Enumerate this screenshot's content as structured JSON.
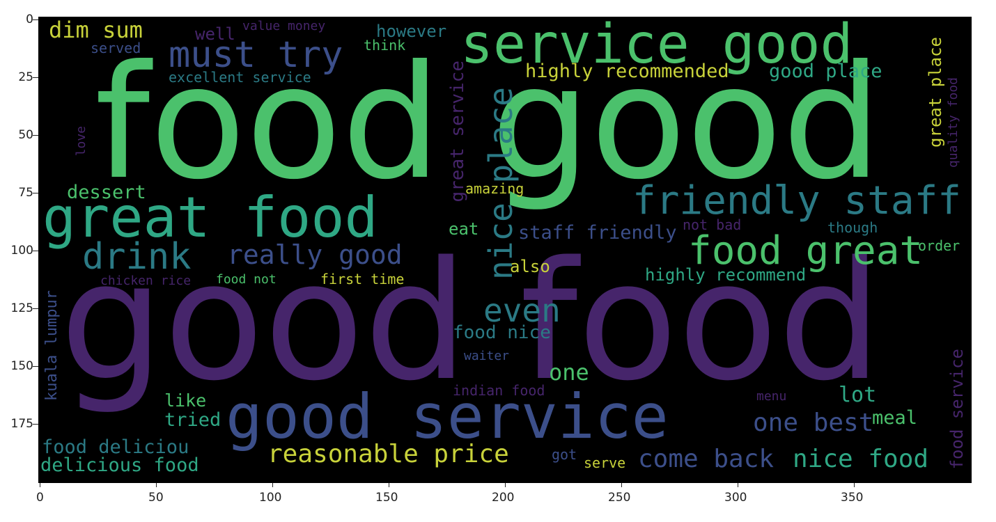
{
  "figure": {
    "y_ticks": [
      "0",
      "25",
      "50",
      "75",
      "100",
      "125",
      "150",
      "175"
    ],
    "x_ticks": [
      "0",
      "50",
      "100",
      "150",
      "200",
      "250",
      "300",
      "350"
    ],
    "colors": {
      "purple": "#46256b",
      "teal": "#2b7a85",
      "green": "#4bc16c",
      "blue": "#3c4f8a",
      "yellow": "#c8d23a",
      "mint": "#2fa885"
    }
  },
  "words": {
    "food_good": "food good",
    "good_food": "good food",
    "service_good": "service good",
    "great_food": "great food",
    "good_service": "good service",
    "food_great": "food great",
    "friendly_staff": "friendly staff",
    "must_try": "must try",
    "nice_place": "nice place",
    "drink": "drink",
    "even": "even",
    "really_good": "really good",
    "reasonable_price": "reasonable price",
    "come_back": "come back",
    "nice_food": "nice food",
    "one_best": "one best",
    "dim_sum": "dim sum",
    "highly_recommended": "highly recommended",
    "good_place": "good place",
    "dessert": "dessert",
    "staff_friendly": "staff friendly",
    "highly_recommend": "highly recommend",
    "food_nice": "food nice",
    "one": "one",
    "delicious_food": "delicious food",
    "food_deliciou": "food deliciou",
    "tried": "tried",
    "like": "like",
    "meal": "meal",
    "lot": "lot",
    "great_service": "great service",
    "great_place": "great place",
    "food_service": "food service",
    "kuala_lumpur": "kuala lumpur",
    "excellent_service": "excellent service",
    "however": "however",
    "well": "well",
    "value_money": "value money",
    "think": "think",
    "served": "served",
    "love": "love",
    "amazing": "amazing",
    "eat": "eat",
    "also": "also",
    "not_bad": "not bad",
    "though": "though",
    "order": "order",
    "first_time": "first time",
    "chicken_rice": "chicken rice",
    "food_not": "food not",
    "waiter": "waiter",
    "indian_food": "indian food",
    "menu": "menu",
    "got": "got",
    "serve": "serve",
    "quality_food": "quality food"
  }
}
